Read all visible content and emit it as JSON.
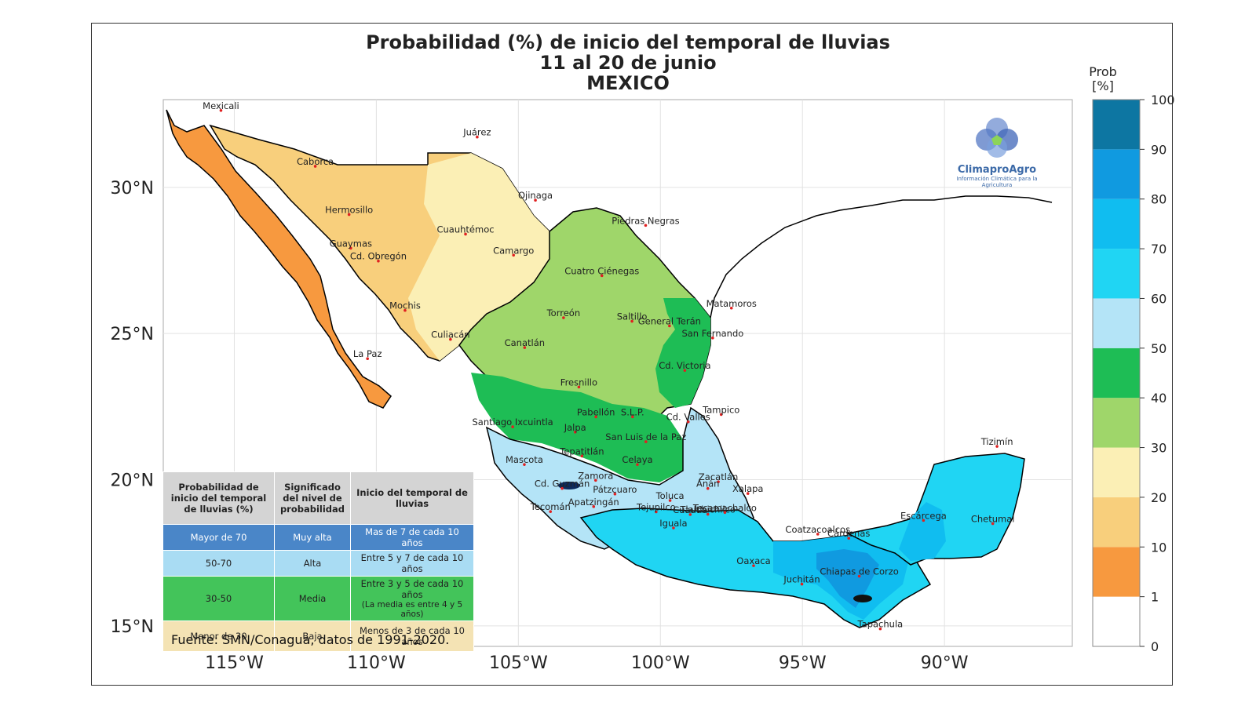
{
  "title": {
    "line1": "Probabilidad (%) de inicio del temporal de lluvias",
    "line2": "11 al 20 de junio",
    "line3": "MEXICO"
  },
  "axes": {
    "x_ticks": [
      "115°W",
      "110°W",
      "105°W",
      "100°W",
      "95°W",
      "90°W"
    ],
    "x_values": [
      -115,
      -110,
      -105,
      -100,
      -95,
      -90
    ],
    "y_ticks": [
      "30°N",
      "25°N",
      "20°N",
      "15°N"
    ],
    "y_values": [
      30,
      25,
      20,
      15
    ],
    "lon_range": [
      -117.5,
      -85.5
    ],
    "lat_range": [
      14.3,
      33.0
    ]
  },
  "colorbar": {
    "title_line1": "Prob",
    "title_line2": "[%]",
    "tick_labels": [
      "100",
      "90",
      "80",
      "70",
      "60",
      "50",
      "40",
      "30",
      "20",
      "10",
      "1",
      "0"
    ],
    "bins": [
      {
        "from": 0,
        "to": 1,
        "color": "#ffffff"
      },
      {
        "from": 1,
        "to": 10,
        "color": "#f7993f"
      },
      {
        "from": 10,
        "to": 20,
        "color": "#f8cf7c"
      },
      {
        "from": 20,
        "to": 30,
        "color": "#fbefb5"
      },
      {
        "from": 30,
        "to": 40,
        "color": "#9fd66a"
      },
      {
        "from": 40,
        "to": 50,
        "color": "#1ebd55"
      },
      {
        "from": 50,
        "to": 60,
        "color": "#b4e4f7"
      },
      {
        "from": 60,
        "to": 70,
        "color": "#20d5f3"
      },
      {
        "from": 70,
        "to": 80,
        "color": "#10bdf0"
      },
      {
        "from": 80,
        "to": 90,
        "color": "#109ae0"
      },
      {
        "from": 90,
        "to": 100,
        "color": "#0d76a2"
      }
    ]
  },
  "cities": [
    {
      "name": "Mexicali",
      "lon": -115.47,
      "lat": 32.63
    },
    {
      "name": "Juárez",
      "lon": -106.45,
      "lat": 31.72
    },
    {
      "name": "Caborca",
      "lon": -112.15,
      "lat": 30.72
    },
    {
      "name": "Ojinaga",
      "lon": -104.4,
      "lat": 29.56
    },
    {
      "name": "Piedras Negras",
      "lon": -100.52,
      "lat": 28.7
    },
    {
      "name": "Hermosillo",
      "lon": -110.96,
      "lat": 29.07
    },
    {
      "name": "Cuauhtémoc",
      "lon": -106.86,
      "lat": 28.4
    },
    {
      "name": "Guaymas",
      "lon": -110.9,
      "lat": 27.92
    },
    {
      "name": "Camargo",
      "lon": -105.17,
      "lat": 27.68
    },
    {
      "name": "Cd. Obregón",
      "lon": -109.93,
      "lat": 27.48
    },
    {
      "name": "Cuatro Ciénegas",
      "lon": -102.06,
      "lat": 26.98
    },
    {
      "name": "Mochis",
      "lon": -108.99,
      "lat": 25.79
    },
    {
      "name": "Matamoros",
      "lon": -97.5,
      "lat": 25.87
    },
    {
      "name": "Torreón",
      "lon": -103.41,
      "lat": 25.54
    },
    {
      "name": "Saltillo",
      "lon": -101.0,
      "lat": 25.42
    },
    {
      "name": "General Terán",
      "lon": -99.68,
      "lat": 25.26
    },
    {
      "name": "San Fernando",
      "lon": -98.16,
      "lat": 24.85
    },
    {
      "name": "Culiacán",
      "lon": -107.39,
      "lat": 24.8
    },
    {
      "name": "La Paz",
      "lon": -110.31,
      "lat": 24.14
    },
    {
      "name": "Canatlán",
      "lon": -104.78,
      "lat": 24.52
    },
    {
      "name": "Cd. Victoria",
      "lon": -99.14,
      "lat": 23.74
    },
    {
      "name": "Fresnillo",
      "lon": -102.87,
      "lat": 23.17
    },
    {
      "name": "Tampico",
      "lon": -97.86,
      "lat": 22.23
    },
    {
      "name": "Pabellón",
      "lon": -102.27,
      "lat": 22.15
    },
    {
      "name": "S.L.P.",
      "lon": -100.98,
      "lat": 22.15
    },
    {
      "name": "Cd. Valles",
      "lon": -99.02,
      "lat": 21.98
    },
    {
      "name": "Santiago Ixcuintla",
      "lon": -105.2,
      "lat": 21.81
    },
    {
      "name": "Jalpa",
      "lon": -103.0,
      "lat": 21.63
    },
    {
      "name": "San Luis de la Paz",
      "lon": -100.51,
      "lat": 21.3
    },
    {
      "name": "Tizimín",
      "lon": -88.15,
      "lat": 21.14
    },
    {
      "name": "Tepatitlán",
      "lon": -102.76,
      "lat": 20.81
    },
    {
      "name": "Celaya",
      "lon": -100.81,
      "lat": 20.52
    },
    {
      "name": "Mascota",
      "lon": -104.79,
      "lat": 20.52
    },
    {
      "name": "Zacatlán",
      "lon": -97.96,
      "lat": 19.93
    },
    {
      "name": "Zamora",
      "lon": -102.28,
      "lat": 19.98
    },
    {
      "name": "Anán",
      "lon": -98.33,
      "lat": 19.7
    },
    {
      "name": "Cd. Guzmán",
      "lon": -103.46,
      "lat": 19.7
    },
    {
      "name": "Pátzcuaro",
      "lon": -101.6,
      "lat": 19.51
    },
    {
      "name": "Xalapa",
      "lon": -96.92,
      "lat": 19.53
    },
    {
      "name": "Toluca",
      "lon": -99.66,
      "lat": 19.29
    },
    {
      "name": "Apatzingán",
      "lon": -102.35,
      "lat": 19.08
    },
    {
      "name": "Tecomán",
      "lon": -103.87,
      "lat": 18.91
    },
    {
      "name": "Tejupilco",
      "lon": -100.15,
      "lat": 18.9
    },
    {
      "name": "Cuautla",
      "lon": -98.95,
      "lat": 18.81
    },
    {
      "name": "Tlalchichilco",
      "lon": -98.33,
      "lat": 18.82
    },
    {
      "name": "Tecamachalco",
      "lon": -97.73,
      "lat": 18.88
    },
    {
      "name": "Iguala",
      "lon": -99.54,
      "lat": 18.35
    },
    {
      "name": "Escárcega",
      "lon": -90.74,
      "lat": 18.61
    },
    {
      "name": "Chetumal",
      "lon": -88.3,
      "lat": 18.5
    },
    {
      "name": "Coatzacoalcos",
      "lon": -94.46,
      "lat": 18.14
    },
    {
      "name": "Cárdenas",
      "lon": -93.37,
      "lat": 18.0
    },
    {
      "name": "Oaxaca",
      "lon": -96.72,
      "lat": 17.06
    },
    {
      "name": "Chiapas de Corzo",
      "lon": -93.0,
      "lat": 16.7
    },
    {
      "name": "Juchitán",
      "lon": -95.02,
      "lat": 16.43
    },
    {
      "name": "Tapachula",
      "lon": -92.26,
      "lat": 14.9
    }
  ],
  "legend_table": {
    "headers": [
      "Probabilidad de inicio del temporal de lluvias (%)",
      "Significado del nivel de probabilidad",
      "Inicio del temporal de lluvias"
    ],
    "rows": [
      {
        "range": "Mayor de 70",
        "level": "Muy alta",
        "meaning": "Mas de 7 de cada 10 años",
        "note": "",
        "bg": "#4a86c8",
        "fg": "#ffffff"
      },
      {
        "range": "50-70",
        "level": "Alta",
        "meaning": "Entre 5 y 7 de cada 10 años",
        "note": "",
        "bg": "#a9dcf3",
        "fg": "#222222"
      },
      {
        "range": "30-50",
        "level": "Media",
        "meaning": "Entre 3 y 5 de cada 10 años",
        "note": "(La media es entre 4 y 5 años)",
        "bg": "#43c45a",
        "fg": "#222222"
      },
      {
        "range": "Menor de 30",
        "level": "Baja",
        "meaning": "Menos de 3 de cada 10 años",
        "note": "",
        "bg": "#f4e3b4",
        "fg": "#222222"
      }
    ]
  },
  "source": "Fuente: SMN/Conagua, datos de 1991-2020.",
  "logo": {
    "name": "ClimaproAgro",
    "tagline_line1": "Información Climática para la",
    "tagline_line2": "Agricultura"
  }
}
